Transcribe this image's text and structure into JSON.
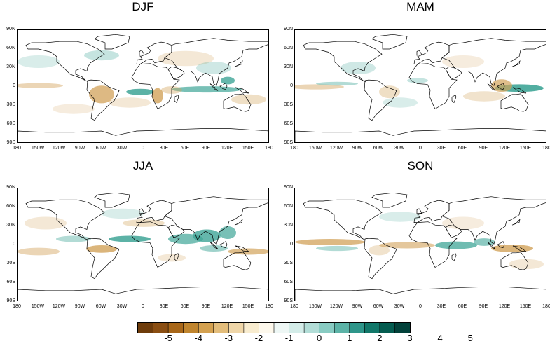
{
  "panels": [
    {
      "id": "djf",
      "title": "DJF"
    },
    {
      "id": "mam",
      "title": "MAM"
    },
    {
      "id": "jja",
      "title": "JJA"
    },
    {
      "id": "son",
      "title": "SON"
    }
  ],
  "lat_labels": [
    "90N",
    "60N",
    "30N",
    "0",
    "30S",
    "60S",
    "90S"
  ],
  "lon_labels": [
    "180",
    "150W",
    "120W",
    "90W",
    "60W",
    "30W",
    "0",
    "30E",
    "60E",
    "90E",
    "120E",
    "150E",
    "180"
  ],
  "colorbar": {
    "labels": [
      "-5",
      "-4",
      "-3",
      "-2",
      "-1",
      "0",
      "1",
      "2",
      "3",
      "4",
      "5"
    ],
    "colors": [
      "#6e3c0b",
      "#8a4e12",
      "#a86719",
      "#c0852e",
      "#d4a150",
      "#e3bd7b",
      "#efd6a8",
      "#f8eccf",
      "#fdf8ec",
      "#eef7f5",
      "#d3ece8",
      "#b2ddd7",
      "#88cbc2",
      "#5cb3a7",
      "#2f968a",
      "#117769",
      "#045c50",
      "#02413a"
    ]
  },
  "colors": {
    "land_outline": "#000000",
    "brown": "#d2a25a",
    "teal": "#3fa597"
  }
}
